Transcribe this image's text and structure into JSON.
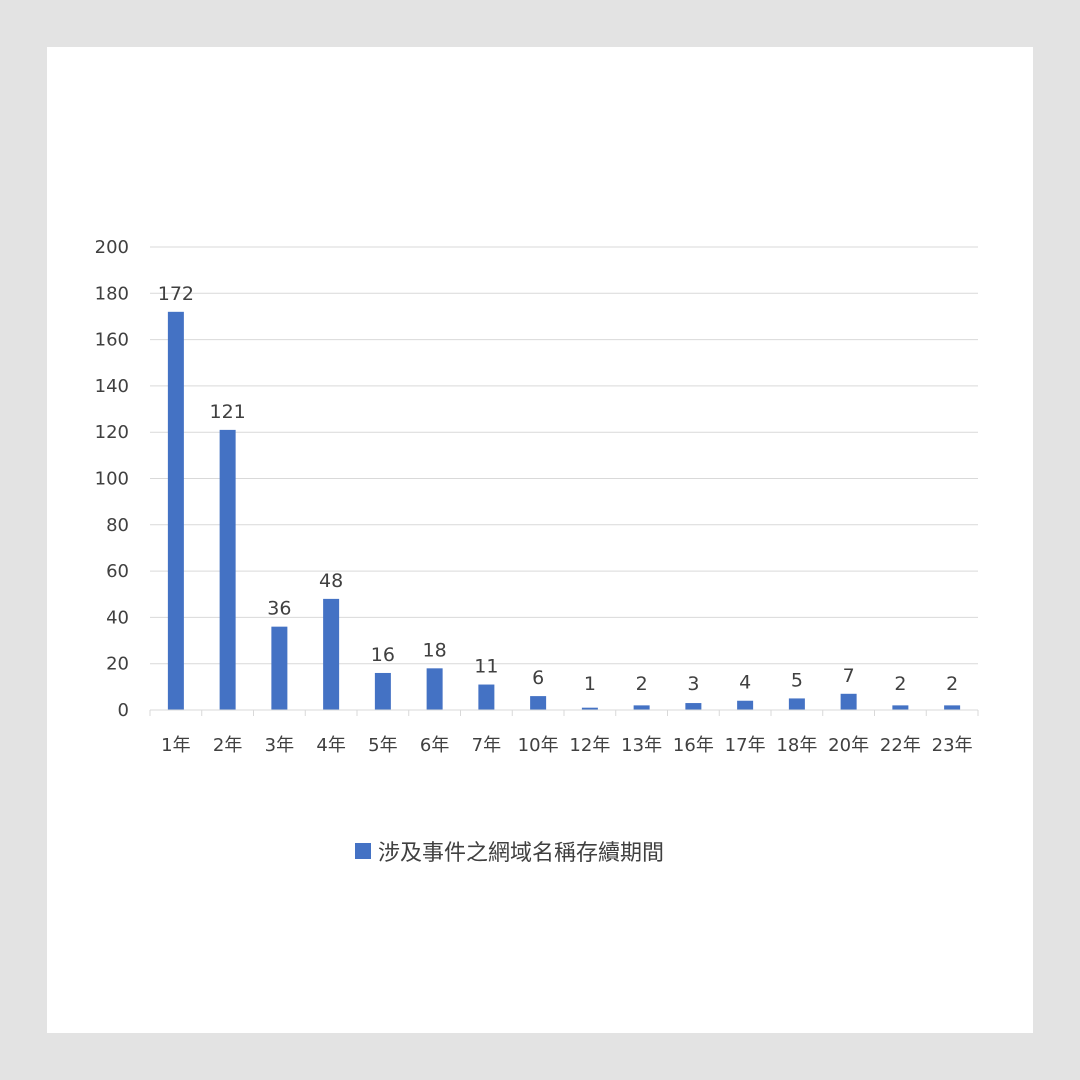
{
  "chart_data": {
    "type": "bar",
    "categories": [
      "1年",
      "2年",
      "3年",
      "4年",
      "5年",
      "6年",
      "7年",
      "10年",
      "12年",
      "13年",
      "16年",
      "17年",
      "18年",
      "20年",
      "22年",
      "23年"
    ],
    "series": [
      {
        "name": "涉及事件之網域名稱存續期間",
        "values": [
          172,
          121,
          36,
          48,
          16,
          18,
          11,
          6,
          1,
          2,
          3,
          4,
          5,
          7,
          2,
          2
        ],
        "color": "#4472c4"
      }
    ],
    "yticks": [
      0,
      20,
      40,
      60,
      80,
      100,
      120,
      140,
      160,
      180,
      200
    ],
    "ylim": [
      0,
      200
    ],
    "grid": true,
    "data_labels": true,
    "legend_position": "bottom"
  },
  "colors": {
    "page_background": "#e3e3e3",
    "card_background": "#ffffff",
    "gridline": "#d9d9d9",
    "text": "#404040"
  }
}
